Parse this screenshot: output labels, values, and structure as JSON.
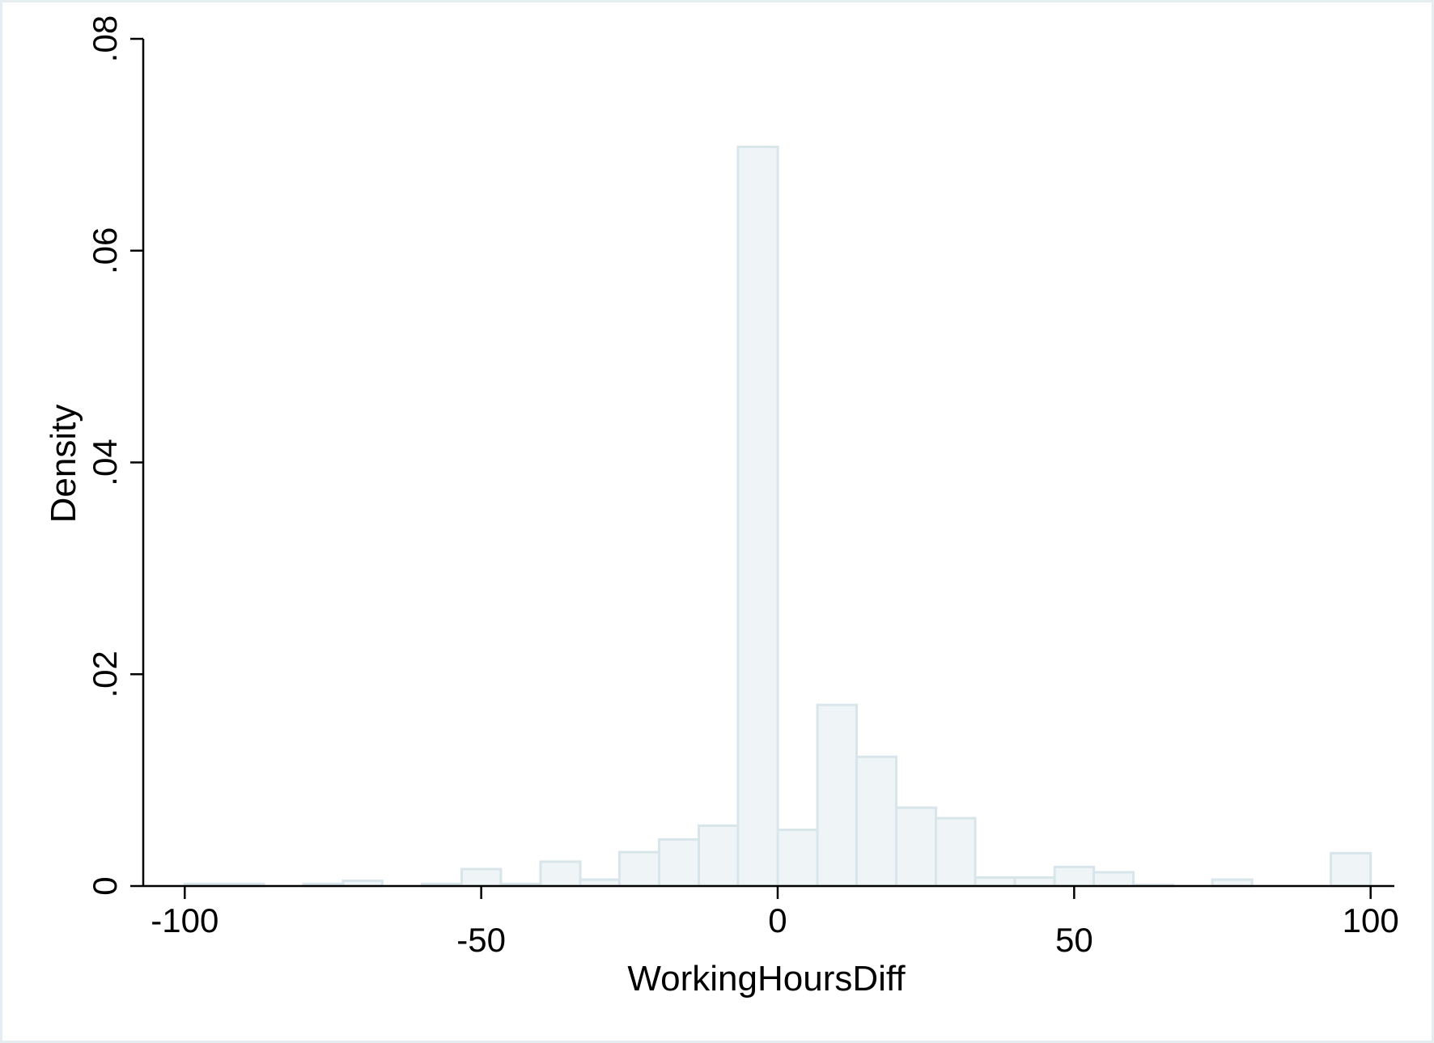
{
  "chart_data": {
    "type": "bar",
    "subtype": "histogram",
    "title": "",
    "xlabel": "WorkingHoursDiff",
    "ylabel": "Density",
    "xlim": [
      -107,
      104
    ],
    "ylim": [
      0,
      0.08
    ],
    "x_ticks": [
      -100,
      -50,
      0,
      50,
      100
    ],
    "x_tick_labels": [
      "-100",
      "-50",
      "0",
      "50",
      "100"
    ],
    "y_ticks": [
      0,
      0.02,
      0.04,
      0.06,
      0.08
    ],
    "y_tick_labels": [
      "0",
      ".02",
      ".04",
      ".06",
      ".08"
    ],
    "grid": false,
    "legend": "none",
    "colors": {
      "bar_fill": "#eff5f7",
      "bar_edge": "#d8e5ea",
      "axis": "#000000"
    },
    "bins": [
      {
        "x0": -100.0,
        "x1": -93.3,
        "value": 0.0002
      },
      {
        "x0": -93.3,
        "x1": -86.7,
        "value": 0.0002
      },
      {
        "x0": -80.0,
        "x1": -73.3,
        "value": 0.0002
      },
      {
        "x0": -73.3,
        "x1": -66.7,
        "value": 0.0005
      },
      {
        "x0": -60.0,
        "x1": -53.3,
        "value": 0.0002
      },
      {
        "x0": -53.3,
        "x1": -46.7,
        "value": 0.0016
      },
      {
        "x0": -46.7,
        "x1": -40.0,
        "value": 0.0002
      },
      {
        "x0": -40.0,
        "x1": -33.3,
        "value": 0.0023
      },
      {
        "x0": -33.3,
        "x1": -26.7,
        "value": 0.0006
      },
      {
        "x0": -26.7,
        "x1": -20.0,
        "value": 0.0032
      },
      {
        "x0": -20.0,
        "x1": -13.3,
        "value": 0.0044
      },
      {
        "x0": -13.3,
        "x1": -6.7,
        "value": 0.0057
      },
      {
        "x0": -6.7,
        "x1": 0.0,
        "value": 0.0698
      },
      {
        "x0": 0.0,
        "x1": 6.7,
        "value": 0.0053
      },
      {
        "x0": 6.7,
        "x1": 13.3,
        "value": 0.0171
      },
      {
        "x0": 13.3,
        "x1": 20.0,
        "value": 0.0122
      },
      {
        "x0": 20.0,
        "x1": 26.7,
        "value": 0.0074
      },
      {
        "x0": 26.7,
        "x1": 33.3,
        "value": 0.0064
      },
      {
        "x0": 33.3,
        "x1": 40.0,
        "value": 0.0008
      },
      {
        "x0": 40.0,
        "x1": 46.7,
        "value": 0.0008
      },
      {
        "x0": 46.7,
        "x1": 53.3,
        "value": 0.0018
      },
      {
        "x0": 53.3,
        "x1": 60.0,
        "value": 0.0013
      },
      {
        "x0": 60.0,
        "x1": 66.7,
        "value": 0.0001
      },
      {
        "x0": 73.3,
        "x1": 80.0,
        "value": 0.0006
      },
      {
        "x0": 93.3,
        "x1": 100.0,
        "value": 0.0031
      }
    ]
  }
}
